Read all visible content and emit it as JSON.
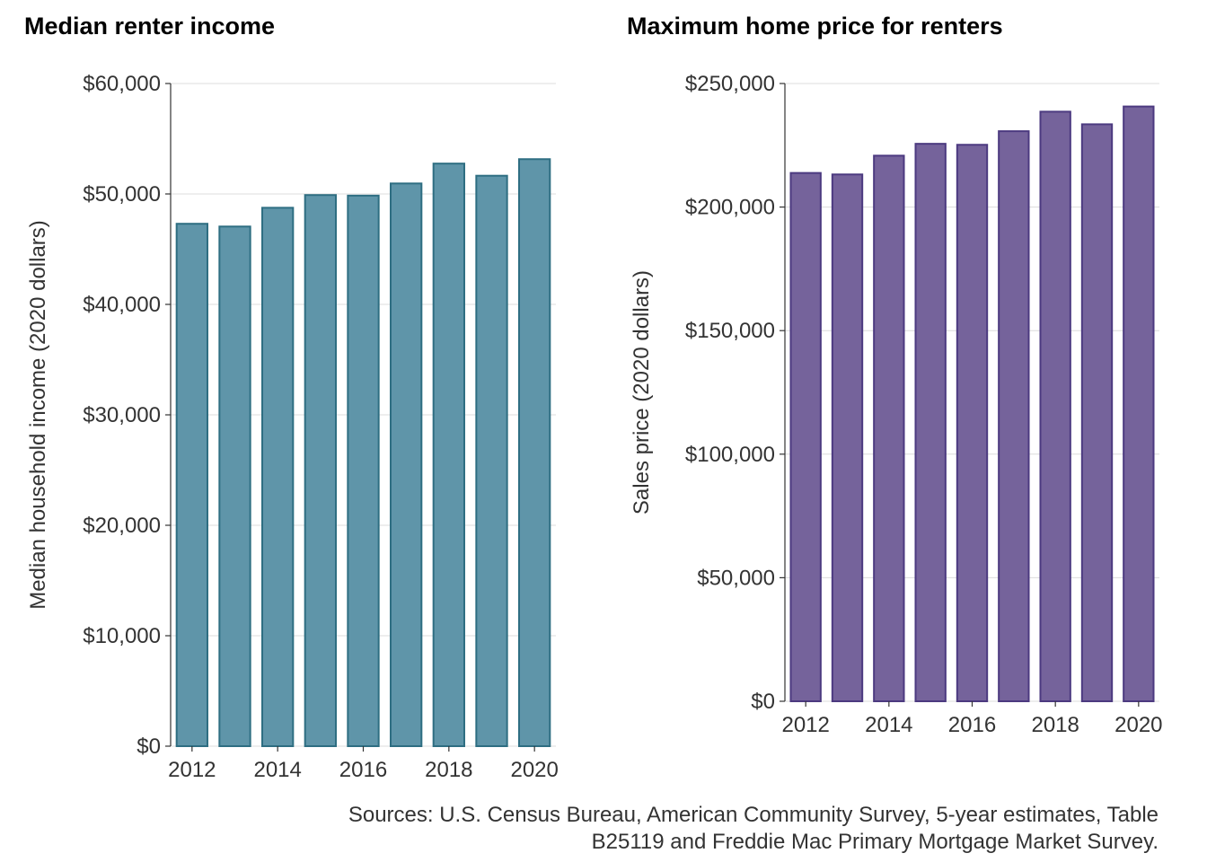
{
  "chart_data": [
    {
      "type": "bar",
      "title": "Median renter income",
      "ylabel": "Median household income (2020 dollars)",
      "xlabel": "",
      "categories": [
        2012,
        2013,
        2014,
        2015,
        2016,
        2017,
        2018,
        2019,
        2020
      ],
      "values": [
        47300,
        47050,
        48750,
        49900,
        49850,
        50950,
        52750,
        51650,
        53150
      ],
      "ylim": [
        0,
        60000
      ],
      "yticks": [
        0,
        10000,
        20000,
        30000,
        40000,
        50000,
        60000
      ],
      "ytick_labels": [
        "$0",
        "$10,000",
        "$20,000",
        "$30,000",
        "$40,000",
        "$50,000",
        "$60,000"
      ],
      "xticks": [
        2012,
        2014,
        2016,
        2018,
        2020
      ],
      "xtick_labels": [
        "2012",
        "2014",
        "2016",
        "2018",
        "2020"
      ],
      "grid": true,
      "bar_color": "#5f95a9",
      "bar_edge_color": "#2e6e82"
    },
    {
      "type": "bar",
      "title": "Maximum home price for renters",
      "ylabel": "Sales price (2020 dollars)",
      "xlabel": "",
      "categories": [
        2012,
        2013,
        2014,
        2015,
        2016,
        2017,
        2018,
        2019,
        2020
      ],
      "values": [
        213800,
        213200,
        220800,
        225600,
        225200,
        230700,
        238600,
        233500,
        240700
      ],
      "ylim": [
        0,
        250000
      ],
      "yticks": [
        0,
        50000,
        100000,
        150000,
        200000,
        250000
      ],
      "ytick_labels": [
        "$0",
        "$50,000",
        "$100,000",
        "$150,000",
        "$200,000",
        "$250,000"
      ],
      "xticks": [
        2012,
        2014,
        2016,
        2018,
        2020
      ],
      "xtick_labels": [
        "2012",
        "2014",
        "2016",
        "2018",
        "2020"
      ],
      "grid": true,
      "bar_color": "#75639b",
      "bar_edge_color": "#4c3a80"
    }
  ],
  "source_note": "Sources: U.S. Census Bureau, American Community Survey, 5-year estimates, Table\nB25119 and Freddie Mac Primary Mortgage Market Survey."
}
